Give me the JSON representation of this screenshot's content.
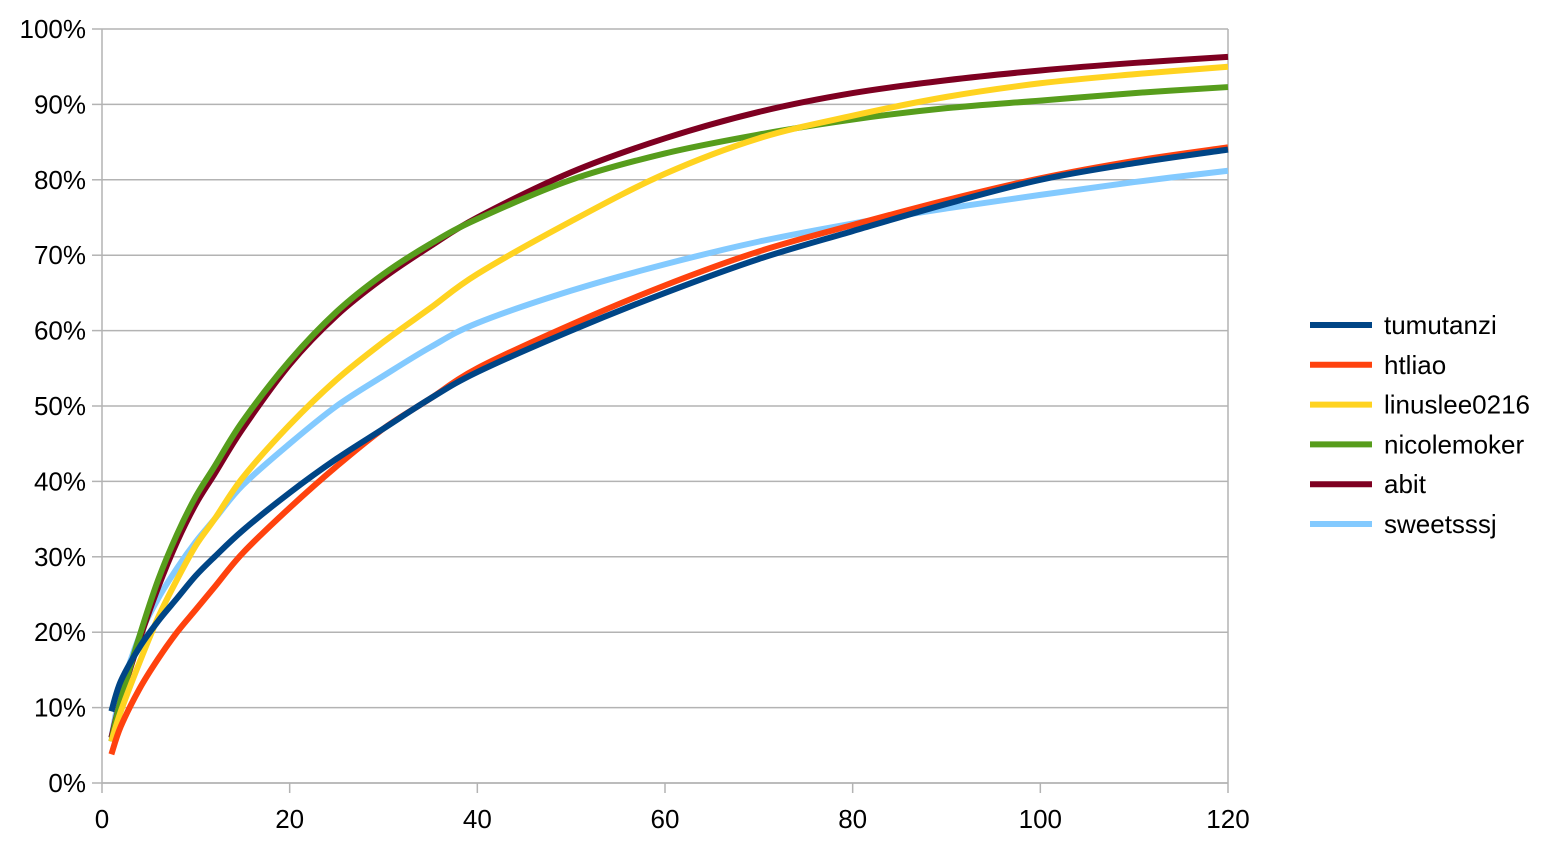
{
  "chart_data": {
    "type": "line",
    "title": "",
    "xlabel": "",
    "ylabel": "",
    "xlim": [
      0,
      120
    ],
    "ylim": [
      0,
      100
    ],
    "x_ticks": [
      0,
      20,
      40,
      60,
      80,
      100,
      120
    ],
    "y_ticks": [
      0,
      10,
      20,
      30,
      40,
      50,
      60,
      70,
      80,
      90,
      100
    ],
    "y_tick_format": "percent",
    "grid": "horizontal",
    "legend_position": "right",
    "x": [
      1,
      2,
      4,
      6,
      8,
      10,
      12,
      15,
      20,
      25,
      30,
      35,
      40,
      50,
      60,
      70,
      80,
      90,
      100,
      110,
      120
    ],
    "series": [
      {
        "name": "tumutanzi",
        "color": "#004586",
        "values": [
          9.5,
          13.5,
          18,
          21.5,
          24.5,
          27.5,
          30,
          33.5,
          38.5,
          43,
          47,
          51,
          54.5,
          60,
          65,
          69.5,
          73.2,
          76.8,
          80,
          82.2,
          84
        ]
      },
      {
        "name": "htliao",
        "color": "#ff420e",
        "values": [
          3.8,
          7.5,
          12.5,
          16.5,
          20,
          23,
          26,
          30.5,
          36.5,
          42,
          47,
          51,
          55,
          60.8,
          66,
          70.5,
          74,
          77.3,
          80.2,
          82.5,
          84.3
        ]
      },
      {
        "name": "linuslee0216",
        "color": "#ffd320",
        "values": [
          5.5,
          9.5,
          16,
          22,
          27,
          31.5,
          35,
          40.5,
          47.5,
          53.5,
          58.5,
          63,
          67.5,
          74.5,
          80.8,
          85.5,
          88.5,
          91,
          92.8,
          94,
          95
        ]
      },
      {
        "name": "nicolemoker",
        "color": "#579d1c",
        "values": [
          5.5,
          11,
          19.5,
          27,
          33,
          38,
          42,
          48,
          56,
          62.5,
          67.5,
          71.5,
          74.8,
          80,
          83.5,
          86,
          88,
          89.5,
          90.5,
          91.5,
          92.3
        ]
      },
      {
        "name": "abit",
        "color": "#7e0021",
        "values": [
          6,
          11,
          19,
          26,
          32,
          37,
          41,
          47,
          55.5,
          62,
          67,
          71.2,
          75,
          81,
          85.5,
          89,
          91.5,
          93.2,
          94.5,
          95.5,
          96.3
        ]
      },
      {
        "name": "sweetsssj",
        "color": "#83caff",
        "values": [
          6,
          12,
          19.5,
          24.5,
          28.5,
          32,
          35,
          39.5,
          45,
          50,
          54,
          57.8,
          61,
          65.3,
          68.8,
          71.8,
          74.2,
          76.2,
          78,
          79.7,
          81.2
        ]
      }
    ]
  },
  "colors": {
    "grid": "#b3b3b3",
    "axis": "#b3b3b3",
    "background": "#ffffff"
  }
}
